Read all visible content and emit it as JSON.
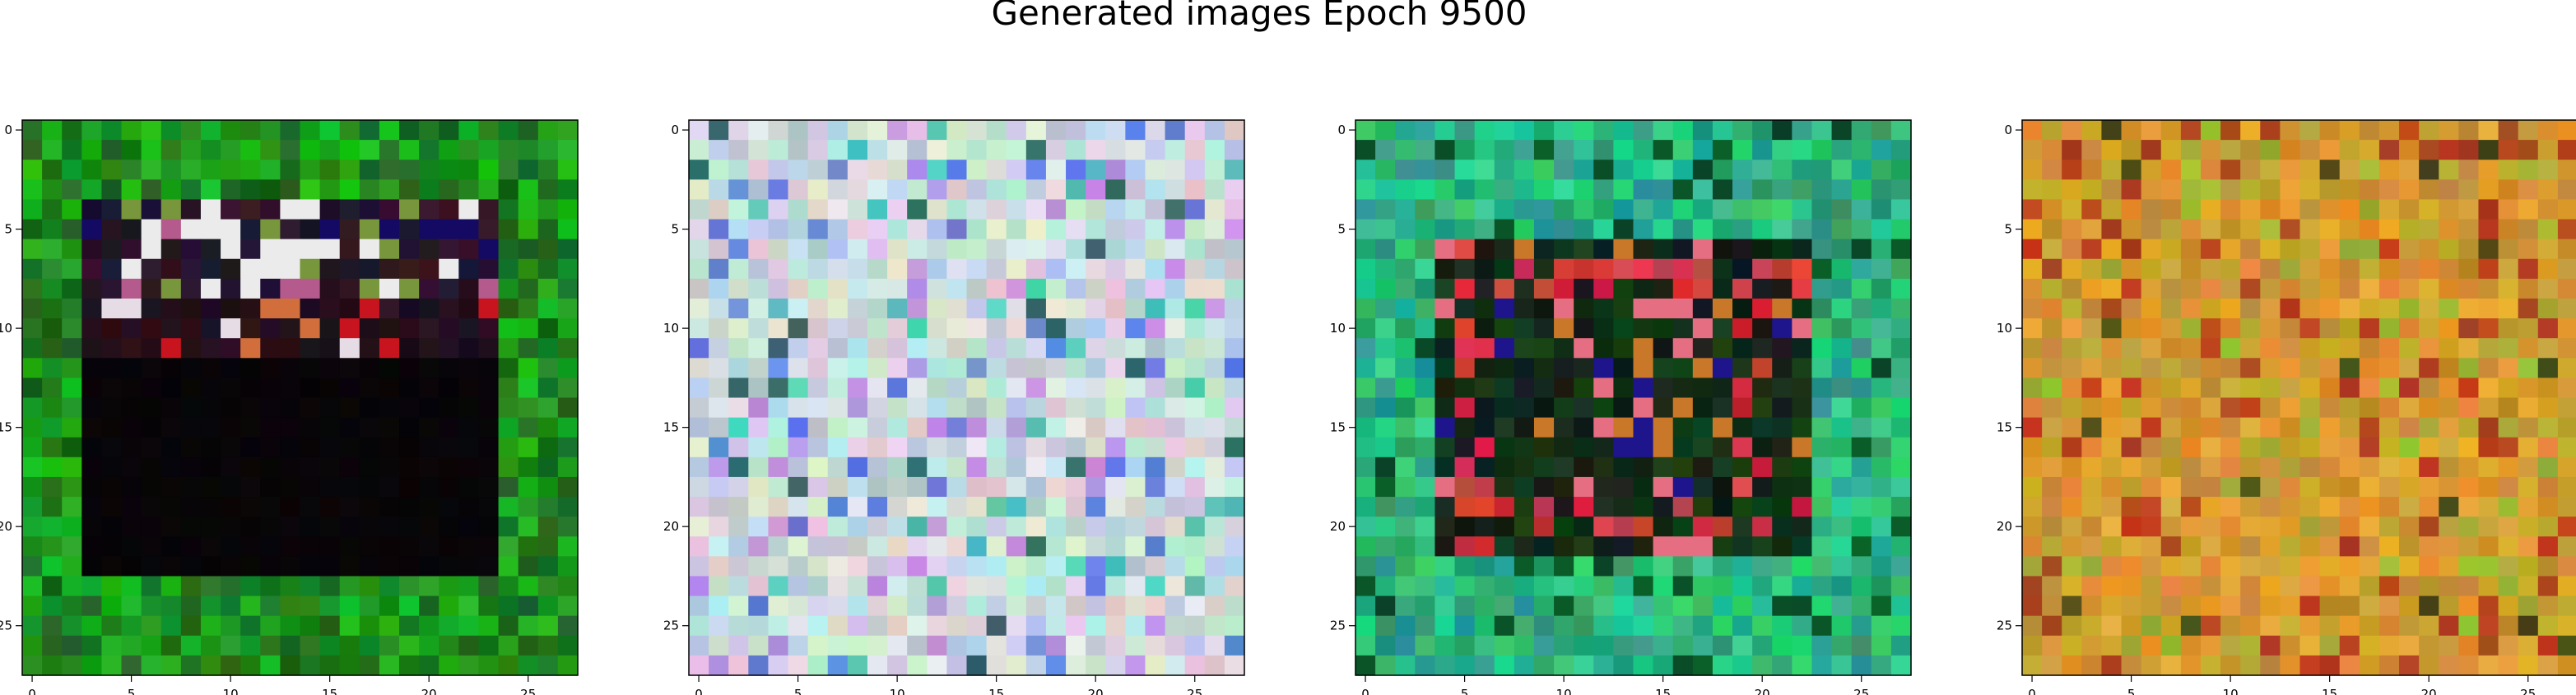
{
  "figure": {
    "title": "Generated images Epoch 9500"
  },
  "chart_data": [
    {
      "type": "heatmap",
      "image_shape": [
        28,
        28,
        3
      ],
      "xlim": [
        -0.5,
        27.5
      ],
      "ylim": [
        27.5,
        -0.5
      ],
      "x_ticks": [
        "0",
        "5",
        "10",
        "15",
        "20",
        "25"
      ],
      "y_ticks": [
        "0",
        "5",
        "10",
        "15",
        "20",
        "25"
      ],
      "style": "green-border-dark-center",
      "colors": {
        "border_green": "#1b8a1b",
        "center_black": "#050505",
        "highlight_white": "#f2f2f2",
        "highlight_pink": "#b05a86"
      }
    },
    {
      "type": "heatmap",
      "image_shape": [
        28,
        28,
        3
      ],
      "xlim": [
        -0.5,
        27.5
      ],
      "ylim": [
        27.5,
        -0.5
      ],
      "x_ticks": [
        "0",
        "5",
        "10",
        "15",
        "20",
        "25"
      ],
      "y_ticks": [
        "0",
        "5",
        "10",
        "15",
        "20",
        "25"
      ],
      "style": "pastel-noise",
      "colors": {
        "base": "#c8d8dc",
        "accent_blue": "#5a78d2",
        "accent_purple": "#b48cd8",
        "accent_teal": "#52c6b0"
      }
    },
    {
      "type": "heatmap",
      "image_shape": [
        28,
        28,
        3
      ],
      "xlim": [
        -0.5,
        27.5
      ],
      "ylim": [
        27.5,
        -0.5
      ],
      "x_ticks": [
        "0",
        "5",
        "10",
        "15",
        "20",
        "25"
      ],
      "y_ticks": [
        "0",
        "5",
        "10",
        "15",
        "20",
        "25"
      ],
      "style": "teal-border-red-center",
      "colors": {
        "border_teal": "#22b07a",
        "center_dark": "#0a1a10",
        "accent_red": "#c8102a",
        "accent_pink": "#e26a8a"
      }
    },
    {
      "type": "heatmap",
      "image_shape": [
        28,
        28,
        3
      ],
      "xlim": [
        -0.5,
        27.5
      ],
      "ylim": [
        27.5,
        -0.5
      ],
      "x_ticks": [
        "0",
        "5",
        "10",
        "15",
        "20",
        "25"
      ],
      "y_ticks": [
        "0",
        "5",
        "10",
        "15",
        "20",
        "25"
      ],
      "style": "ochre-noise",
      "colors": {
        "base": "#c8962a",
        "accent_red": "#b83a1a",
        "accent_olive": "#9aa82a",
        "accent_dark": "#5a4a10"
      }
    }
  ]
}
